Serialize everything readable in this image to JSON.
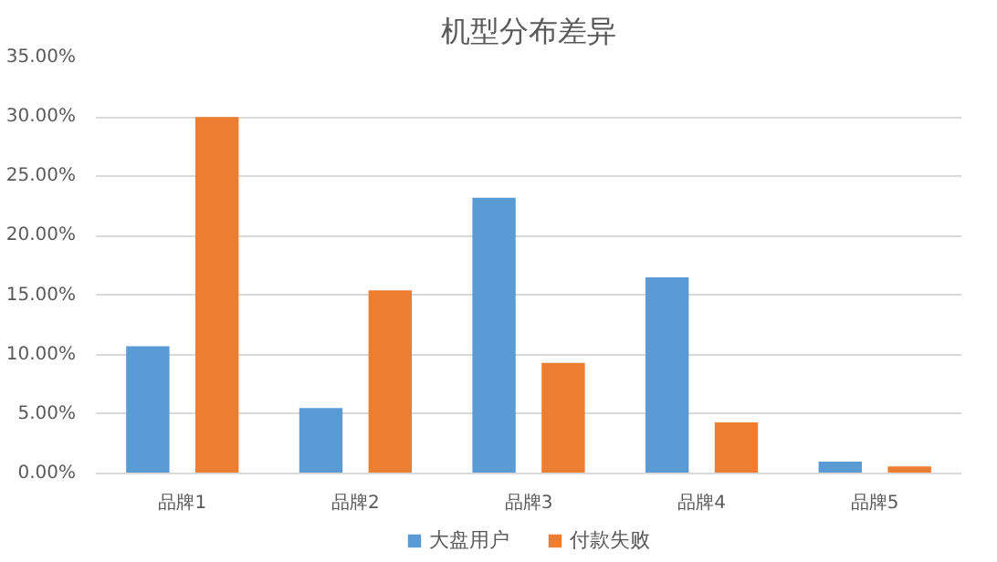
{
  "chart_data": {
    "type": "bar",
    "title": "机型分布差异",
    "categories": [
      "品牌1",
      "品牌2",
      "品牌3",
      "品牌4",
      "品牌5"
    ],
    "series": [
      {
        "name": "大盘用户",
        "color": "#5b9bd5",
        "values": [
          10.7,
          5.5,
          23.2,
          16.5,
          1.0
        ]
      },
      {
        "name": "付款失败",
        "color": "#ed7d31",
        "values": [
          30.0,
          15.4,
          9.3,
          4.3,
          0.6
        ]
      }
    ],
    "ylim": [
      0,
      35
    ],
    "yticks": [
      {
        "value": 0,
        "label": "0.00%"
      },
      {
        "value": 5,
        "label": "5.00%"
      },
      {
        "value": 10,
        "label": "10.00%"
      },
      {
        "value": 15,
        "label": "15.00%"
      },
      {
        "value": 20,
        "label": "20.00%"
      },
      {
        "value": 25,
        "label": "25.00%"
      },
      {
        "value": 30,
        "label": "30.00%"
      },
      {
        "value": 35,
        "label": "35.00%"
      }
    ],
    "grid": "y",
    "legend": "bottom"
  }
}
